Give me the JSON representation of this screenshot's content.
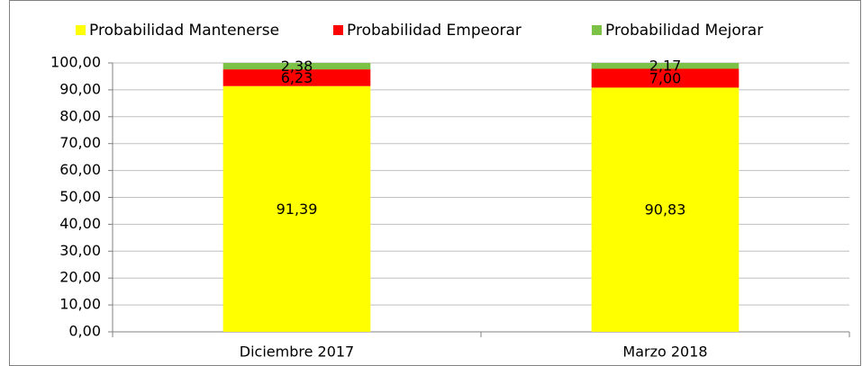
{
  "chart_data": {
    "type": "stacked_bar",
    "categories": [
      "Diciembre 2017",
      "Marzo 2018"
    ],
    "series": [
      {
        "name": "Probabilidad Mantenerse",
        "color": "#ffff00",
        "values": [
          91.39,
          90.83
        ],
        "value_labels": [
          "91,39",
          "90,83"
        ]
      },
      {
        "name": "Probabilidad Empeorar",
        "color": "#ff0000",
        "values": [
          6.23,
          7.0
        ],
        "value_labels": [
          "6,23",
          "7,00"
        ]
      },
      {
        "name": "Probabilidad Mejorar",
        "color": "#7cc246",
        "values": [
          2.38,
          2.17
        ],
        "value_labels": [
          "2,38",
          "2,17"
        ]
      }
    ],
    "ylim": [
      0,
      100
    ],
    "yticks": [
      {
        "value": 0,
        "label": "0,00"
      },
      {
        "value": 10,
        "label": "10,00"
      },
      {
        "value": 20,
        "label": "20,00"
      },
      {
        "value": 30,
        "label": "30,00"
      },
      {
        "value": 40,
        "label": "40,00"
      },
      {
        "value": 50,
        "label": "50,00"
      },
      {
        "value": 60,
        "label": "60,00"
      },
      {
        "value": 70,
        "label": "70,00"
      },
      {
        "value": 80,
        "label": "80,00"
      },
      {
        "value": 90,
        "label": "90,00"
      },
      {
        "value": 100,
        "label": "100,00"
      }
    ],
    "grid": true,
    "legend": "top"
  }
}
